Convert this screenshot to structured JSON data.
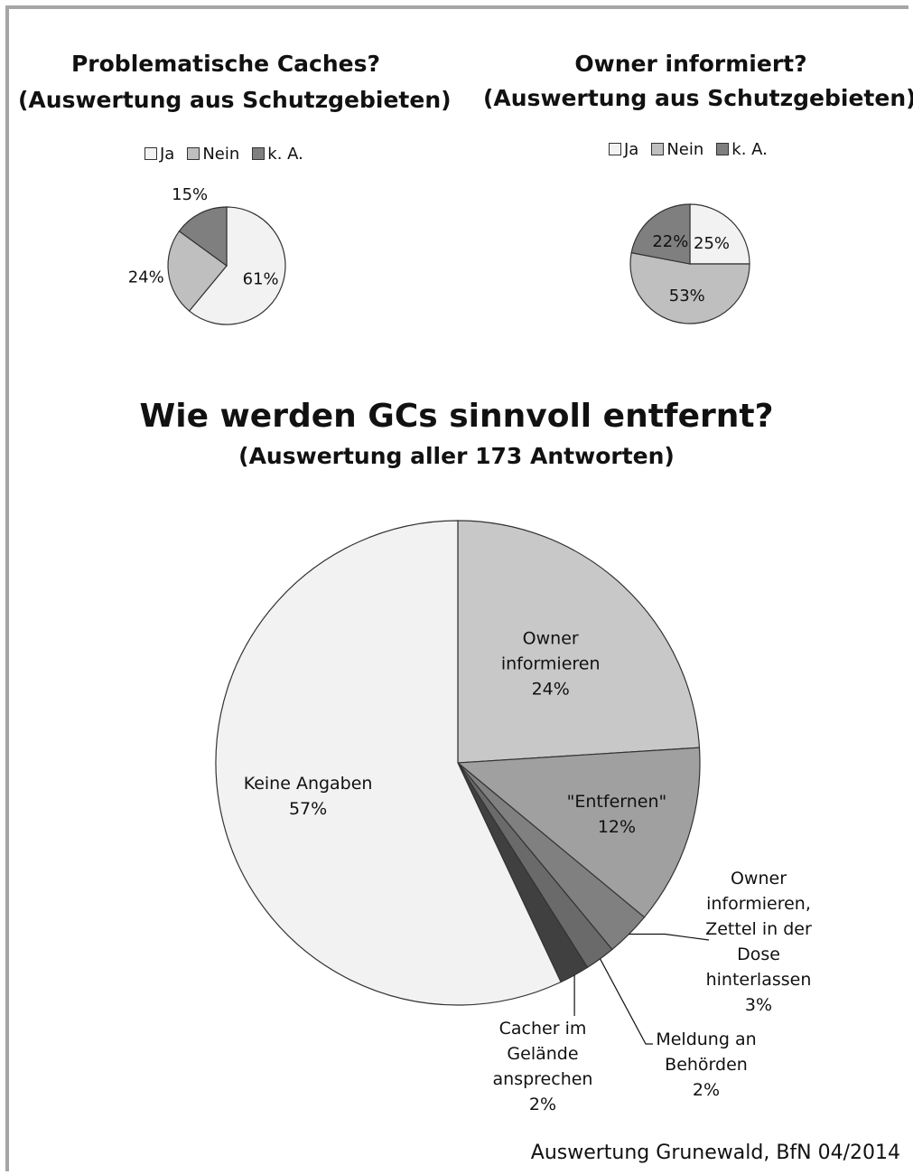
{
  "chart_data": [
    {
      "type": "pie",
      "title": "Problematische Caches?",
      "subtitle": "(Auswertung aus Schutzgebieten)",
      "legend": [
        "Ja",
        "Nein",
        "k. A."
      ],
      "slices": [
        {
          "label": "Ja",
          "value": 61,
          "display": "61%",
          "color": "#f2f2f2"
        },
        {
          "label": "Nein",
          "value": 24,
          "display": "24%",
          "color": "#bfbfbf"
        },
        {
          "label": "k. A.",
          "value": 15,
          "display": "15%",
          "color": "#7f7f7f"
        }
      ]
    },
    {
      "type": "pie",
      "title": "Owner informiert?",
      "subtitle": "(Auswertung aus Schutzgebieten)",
      "legend": [
        "Ja",
        "Nein",
        "k. A."
      ],
      "slices": [
        {
          "label": "Ja",
          "value": 25,
          "display": "25%",
          "color": "#f2f2f2"
        },
        {
          "label": "Nein",
          "value": 53,
          "display": "53%",
          "color": "#bfbfbf"
        },
        {
          "label": "k. A.",
          "value": 22,
          "display": "22%",
          "color": "#7f7f7f"
        }
      ]
    },
    {
      "type": "pie",
      "title": "Wie werden GCs sinnvoll entfernt?",
      "subtitle": "(Auswertung aller 173 Antworten)",
      "slices": [
        {
          "label": [
            "Owner",
            "informieren"
          ],
          "value": 24,
          "display": "24%",
          "color": "#c8c8c8"
        },
        {
          "label": [
            "\"Entfernen\""
          ],
          "value": 12,
          "display": "12%",
          "color": "#a0a0a0"
        },
        {
          "label": [
            "Owner",
            "informieren,",
            "Zettel in der",
            "Dose",
            "hinterlassen"
          ],
          "value": 3,
          "display": "3%",
          "color": "#808080"
        },
        {
          "label": [
            "Meldung an",
            "Behörden"
          ],
          "value": 2,
          "display": "2%",
          "color": "#6a6a6a"
        },
        {
          "label": [
            "Cacher im",
            "Gelände",
            "ansprechen"
          ],
          "value": 2,
          "display": "2%",
          "color": "#404040"
        },
        {
          "label": [
            "Keine Angaben"
          ],
          "value": 57,
          "display": "57%",
          "color": "#f2f2f2"
        }
      ]
    }
  ],
  "footer": "Auswertung Grunewald, BfN  04/2014",
  "colors": {
    "frame": "#a6a6a6",
    "outline": "#333333"
  }
}
